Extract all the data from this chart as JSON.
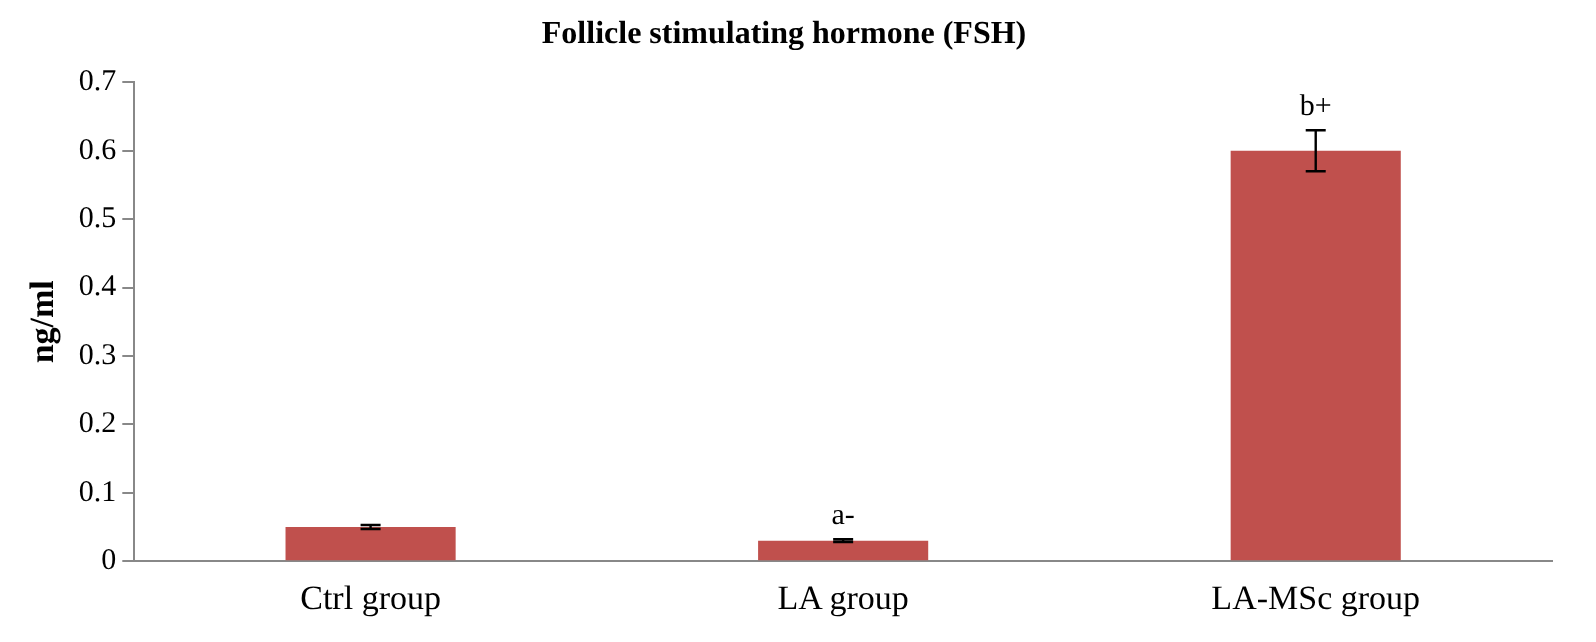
{
  "chart_data": {
    "type": "bar",
    "title": "Follicle stimulating hormone (FSH)",
    "ylabel": "ng/ml",
    "categories": [
      "Ctrl group",
      "LA group",
      "LA-MSc group"
    ],
    "values": [
      0.05,
      0.03,
      0.6
    ],
    "color": "#c0504d",
    "errors": [
      0.003,
      0.002,
      0.03
    ],
    "ylim": [
      0,
      0.7
    ],
    "yticks": [
      0,
      0.1,
      0.2,
      0.3,
      0.4,
      0.5,
      0.6,
      0.7
    ],
    "grid": false,
    "legend": false,
    "annotations": [
      {
        "text": "a-",
        "x": "LA group",
        "y": 0.03
      },
      {
        "text": "b+",
        "x": "LA-MSc group",
        "y": 0.6
      }
    ]
  }
}
